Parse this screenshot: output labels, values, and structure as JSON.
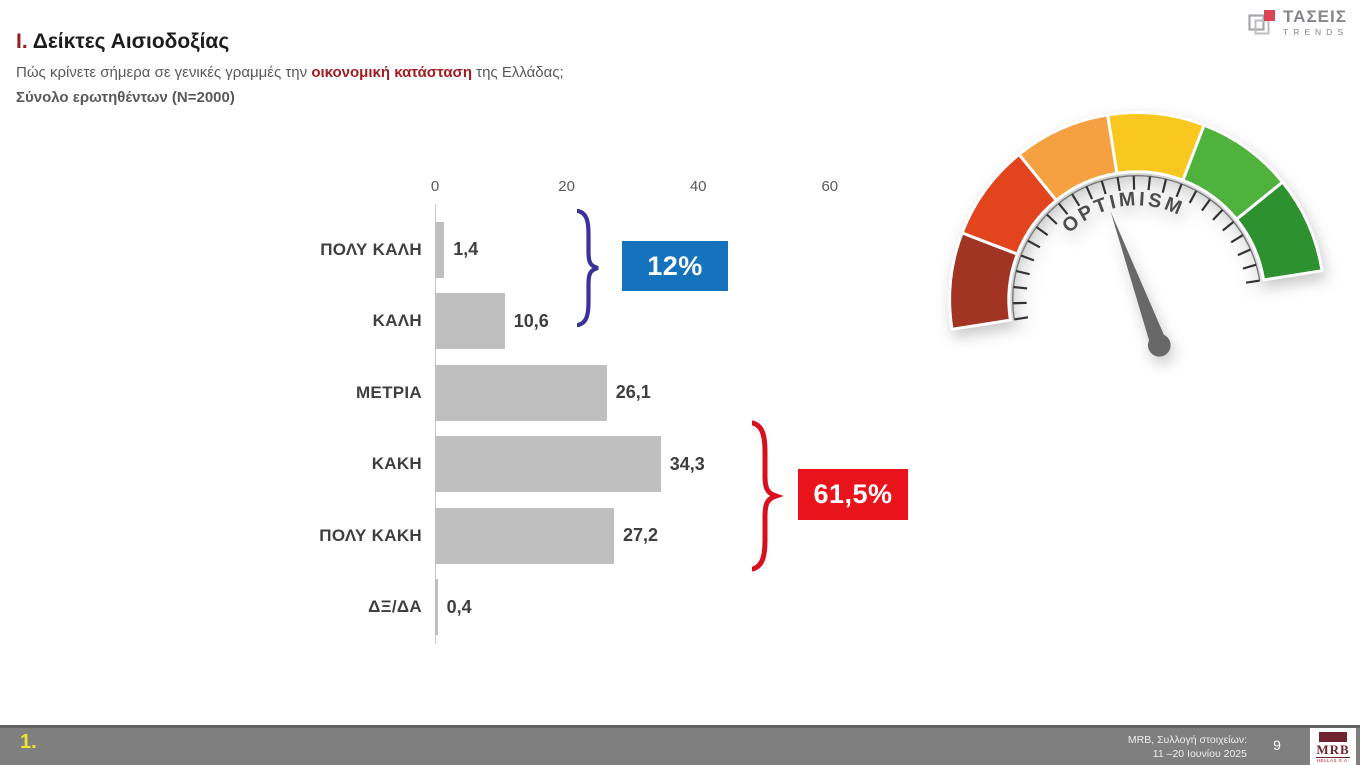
{
  "slide": {
    "title_prefix": "Ι.",
    "title": "Δείκτες Αισιοδοξίας",
    "question_pre": "Πώς κρίνετε σήμερα σε γενικές γραμμές την ",
    "question_highlight": "οικονομική κατάσταση",
    "question_post": " της Ελλάδας;",
    "sample": "Σύνολο ερωτηθέντων (N=2000)"
  },
  "brand": {
    "name": "ΤΑΣΕΙΣ",
    "sub": "TRENDS"
  },
  "chart_data": {
    "type": "bar",
    "orientation": "horizontal",
    "title": "Πώς κρίνετε σήμερα σε γενικές γραμμές την οικονομική κατάσταση της Ελλάδας;",
    "categories": [
      "ΠΟΛΥ ΚΑΛΗ",
      "ΚΑΛΗ",
      "ΜΕΤΡΙΑ",
      "ΚΑΚΗ",
      "ΠΟΛΥ ΚΑΚΗ",
      "ΔΞ/ΔΑ"
    ],
    "values": [
      1.4,
      10.6,
      26.1,
      34.3,
      27.2,
      0.4
    ],
    "value_labels": [
      "1,4",
      "10,6",
      "26,1",
      "34,3",
      "27,2",
      "0,4"
    ],
    "x_ticks": [
      0,
      20,
      40,
      60
    ],
    "x_tick_labels": [
      "0",
      "20",
      "40",
      "60"
    ],
    "xlim": [
      0,
      60
    ],
    "grid": false,
    "bar_color": "#bfbfbf",
    "annotations": [
      {
        "label": "12%",
        "groups": [
          "ΠΟΛΥ ΚΑΛΗ",
          "ΚΑΛΗ"
        ],
        "box_color": "#1473bc",
        "brace_color": "#3a3199"
      },
      {
        "label": "61,5%",
        "groups": [
          "ΚΑΚΗ",
          "ΠΟΛΥ ΚΑΚΗ"
        ],
        "box_color": "#e8131b",
        "brace_color": "#d8101e"
      }
    ]
  },
  "gauge": {
    "label": "OPTIMISM",
    "segment_colors": [
      "#a23424",
      "#e2441d",
      "#f5a041",
      "#f9c820",
      "#4fb23c",
      "#2e9130"
    ],
    "needle_color": "#686868",
    "tick_color": "#333333",
    "label_color": "#4d4d4d"
  },
  "footer": {
    "index": "1.",
    "source_line1": "MRB, Συλλογή στοιχείων:",
    "source_line2": "11 –20 Ιουνίου 2025",
    "page": "9",
    "logo_name": "MRB",
    "logo_sub": "HELLAS S.A."
  }
}
